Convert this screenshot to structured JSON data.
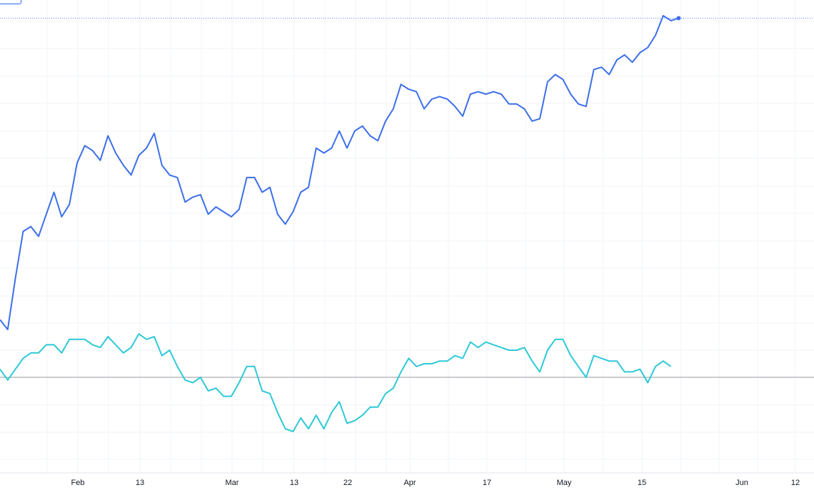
{
  "chart_data": {
    "type": "line",
    "grid": true,
    "x_tick_labels": [
      "Feb",
      "13",
      "Mar",
      "13",
      "22",
      "Apr",
      "17",
      "May",
      "15",
      "Jun",
      "12"
    ],
    "colors": {
      "price_line": "#3d6fe8",
      "oscillator_line": "#2ec9d6",
      "last_price_guide": "#5b7cf0",
      "zero_line": "#9598a1",
      "grid": "#f0f3fa"
    },
    "series": [
      {
        "role": "price",
        "values": [
          20,
          16,
          37,
          56,
          58,
          54,
          63,
          72,
          62,
          67,
          84,
          91,
          89,
          85,
          95,
          88,
          83,
          79,
          87,
          90,
          96,
          83,
          79,
          78,
          68,
          70,
          71,
          63,
          66,
          64,
          62,
          65,
          78,
          78,
          72,
          74,
          63,
          59,
          64,
          72,
          74,
          90,
          88,
          90,
          97,
          90,
          97,
          99,
          95,
          93,
          101,
          106,
          116,
          114,
          113,
          106,
          110,
          111,
          110,
          107,
          103,
          112,
          113,
          112,
          113,
          112,
          108,
          108,
          106,
          101,
          102,
          117,
          120,
          118,
          112,
          108,
          107,
          122,
          123,
          120,
          126,
          128,
          125,
          129,
          131,
          136,
          144,
          142,
          143
        ],
        "line_color": "#3d6fe8"
      },
      {
        "role": "oscillator",
        "values": [
          3,
          -1,
          3,
          7,
          9,
          9,
          12,
          12,
          9,
          14,
          14,
          14,
          12,
          11,
          15,
          12,
          9,
          11,
          16,
          14,
          15,
          8,
          10,
          4,
          -1,
          -2,
          0,
          -5,
          -4,
          -7,
          -7,
          -2,
          4,
          4,
          -5,
          -6,
          -13,
          -19,
          -20,
          -15,
          -19,
          -14,
          -19,
          -13,
          -9,
          -17,
          -16,
          -14,
          -11,
          -11,
          -6,
          -4,
          2,
          7,
          4,
          5,
          5,
          6,
          6,
          8,
          7,
          13,
          11,
          13,
          12,
          11,
          10,
          10,
          11,
          6,
          2,
          10,
          14,
          14,
          8,
          4,
          0,
          8,
          7,
          6,
          6,
          2,
          2,
          3,
          -2,
          4,
          6,
          4
        ]
      }
    ]
  }
}
